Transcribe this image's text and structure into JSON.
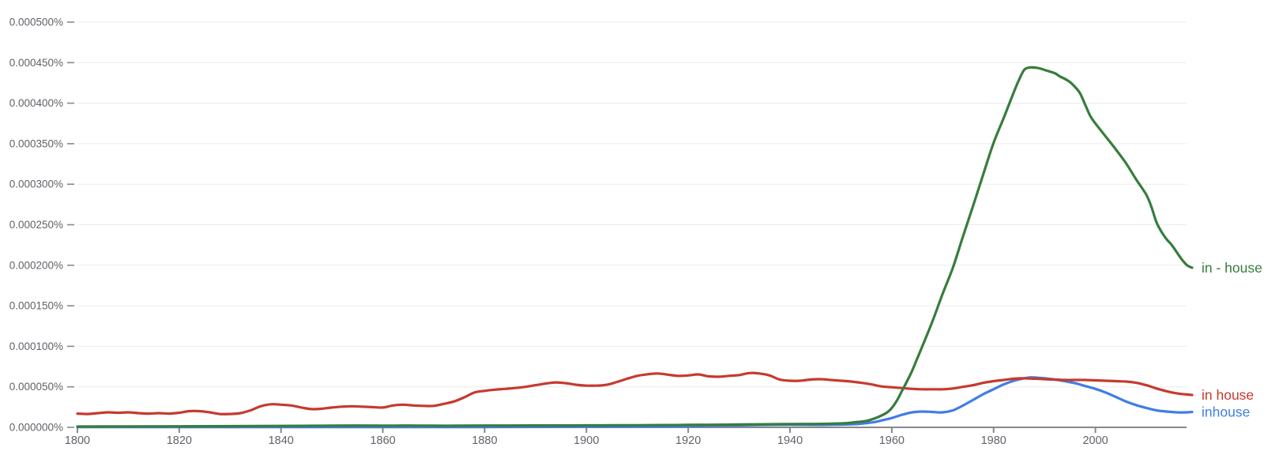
{
  "chart_data": {
    "type": "line",
    "description": "Ngram-style usage frequency chart of three phrases over time",
    "grid": true,
    "legend_position": "right-end-of-lines",
    "value_unit": "percent, stored as millionths of a percent (value 50 = 0.000050%)",
    "x_range": [
      1800,
      2019
    ],
    "y_range_percent": [
      0,
      0.0005
    ],
    "x_axis": {
      "ticks": [
        {
          "label": "1800",
          "year": 1800
        },
        {
          "label": "1820",
          "year": 1820
        },
        {
          "label": "1840",
          "year": 1840
        },
        {
          "label": "1860",
          "year": 1860
        },
        {
          "label": "1880",
          "year": 1880
        },
        {
          "label": "1900",
          "year": 1900
        },
        {
          "label": "1920",
          "year": 1920
        },
        {
          "label": "1940",
          "year": 1940
        },
        {
          "label": "1960",
          "year": 1960
        },
        {
          "label": "1980",
          "year": 1980
        },
        {
          "label": "2000",
          "year": 2000
        }
      ]
    },
    "y_axis": {
      "ticks": [
        {
          "label": "0.000500%",
          "value_e6": 500
        },
        {
          "label": "0.000450%",
          "value_e6": 450
        },
        {
          "label": "0.000400%",
          "value_e6": 400
        },
        {
          "label": "0.000350%",
          "value_e6": 350
        },
        {
          "label": "0.000300%",
          "value_e6": 300
        },
        {
          "label": "0.000250%",
          "value_e6": 250
        },
        {
          "label": "0.000200%",
          "value_e6": 200
        },
        {
          "label": "0.000150%",
          "value_e6": 150
        },
        {
          "label": "0.000100%",
          "value_e6": 100
        },
        {
          "label": "0.000050%",
          "value_e6": 50
        },
        {
          "label": "0.000000%",
          "value_e6": 0
        }
      ]
    },
    "colors": {
      "grid_line": "#ececec",
      "axis_line": "#85898d",
      "tick_mark": "#85898d",
      "axis_text": "#5f6368"
    },
    "series": [
      {
        "name": "in - house",
        "color": "#377d3c",
        "points": [
          [
            1800,
            1
          ],
          [
            1810,
            1.2
          ],
          [
            1820,
            1.3
          ],
          [
            1830,
            1.5
          ],
          [
            1840,
            1.8
          ],
          [
            1850,
            2
          ],
          [
            1855,
            2.2
          ],
          [
            1860,
            2
          ],
          [
            1865,
            2.2
          ],
          [
            1870,
            2
          ],
          [
            1875,
            2
          ],
          [
            1880,
            2.2
          ],
          [
            1885,
            2.2
          ],
          [
            1890,
            2.3
          ],
          [
            1895,
            2.3
          ],
          [
            1900,
            2.4
          ],
          [
            1905,
            2.5
          ],
          [
            1910,
            2.6
          ],
          [
            1915,
            2.8
          ],
          [
            1920,
            3
          ],
          [
            1925,
            3.2
          ],
          [
            1930,
            3.5
          ],
          [
            1935,
            3.8
          ],
          [
            1940,
            4
          ],
          [
            1944,
            4.2
          ],
          [
            1948,
            4.6
          ],
          [
            1951,
            5.2
          ],
          [
            1953,
            6.5
          ],
          [
            1955,
            8
          ],
          [
            1957,
            12
          ],
          [
            1959,
            18
          ],
          [
            1960,
            24
          ],
          [
            1961,
            33
          ],
          [
            1962,
            45
          ],
          [
            1963,
            57
          ],
          [
            1964,
            70
          ],
          [
            1965,
            85
          ],
          [
            1966,
            100
          ],
          [
            1968,
            131
          ],
          [
            1970,
            165
          ],
          [
            1972,
            197
          ],
          [
            1974,
            236
          ],
          [
            1976,
            274
          ],
          [
            1978,
            313
          ],
          [
            1980,
            351
          ],
          [
            1982,
            382
          ],
          [
            1984,
            414
          ],
          [
            1985,
            429
          ],
          [
            1986,
            441
          ],
          [
            1987,
            444
          ],
          [
            1988,
            444
          ],
          [
            1989,
            443
          ],
          [
            1990,
            441
          ],
          [
            1992,
            437
          ],
          [
            1993,
            433
          ],
          [
            1994,
            430
          ],
          [
            1995,
            426
          ],
          [
            1996,
            420
          ],
          [
            1997,
            412
          ],
          [
            1998,
            398
          ],
          [
            1999,
            384
          ],
          [
            2000,
            375
          ],
          [
            2002,
            359
          ],
          [
            2004,
            343
          ],
          [
            2006,
            326
          ],
          [
            2008,
            306
          ],
          [
            2010,
            287
          ],
          [
            2011,
            272
          ],
          [
            2012,
            253
          ],
          [
            2013,
            241
          ],
          [
            2014,
            232
          ],
          [
            2015,
            225
          ],
          [
            2016,
            216
          ],
          [
            2017,
            207
          ],
          [
            2018,
            200
          ],
          [
            2019,
            197
          ]
        ]
      },
      {
        "name": "in house",
        "color": "#c53a30",
        "points": [
          [
            1800,
            17
          ],
          [
            1802,
            16.5
          ],
          [
            1804,
            17.5
          ],
          [
            1806,
            18.5
          ],
          [
            1808,
            18
          ],
          [
            1810,
            18.5
          ],
          [
            1812,
            17.5
          ],
          [
            1814,
            17
          ],
          [
            1816,
            17.5
          ],
          [
            1818,
            17
          ],
          [
            1820,
            18
          ],
          [
            1822,
            20
          ],
          [
            1824,
            20
          ],
          [
            1826,
            18.5
          ],
          [
            1828,
            16.5
          ],
          [
            1830,
            16.5
          ],
          [
            1832,
            17.5
          ],
          [
            1834,
            21
          ],
          [
            1836,
            26
          ],
          [
            1838,
            28.5
          ],
          [
            1840,
            28
          ],
          [
            1842,
            27
          ],
          [
            1844,
            24.5
          ],
          [
            1846,
            22.5
          ],
          [
            1848,
            23
          ],
          [
            1850,
            24.5
          ],
          [
            1852,
            25.5
          ],
          [
            1854,
            26
          ],
          [
            1856,
            25.5
          ],
          [
            1858,
            25
          ],
          [
            1860,
            24.5
          ],
          [
            1862,
            27
          ],
          [
            1864,
            28
          ],
          [
            1866,
            27
          ],
          [
            1868,
            26.5
          ],
          [
            1870,
            26.5
          ],
          [
            1872,
            29
          ],
          [
            1874,
            32
          ],
          [
            1876,
            37
          ],
          [
            1878,
            43
          ],
          [
            1880,
            45
          ],
          [
            1882,
            46.5
          ],
          [
            1884,
            47.5
          ],
          [
            1886,
            48.5
          ],
          [
            1888,
            50
          ],
          [
            1890,
            52
          ],
          [
            1892,
            54
          ],
          [
            1894,
            55.5
          ],
          [
            1896,
            54.5
          ],
          [
            1898,
            52.5
          ],
          [
            1900,
            51.5
          ],
          [
            1902,
            51.5
          ],
          [
            1904,
            52.5
          ],
          [
            1906,
            56
          ],
          [
            1908,
            60
          ],
          [
            1910,
            63.5
          ],
          [
            1912,
            65.5
          ],
          [
            1914,
            66.5
          ],
          [
            1916,
            65
          ],
          [
            1918,
            63.5
          ],
          [
            1920,
            64
          ],
          [
            1922,
            65.3
          ],
          [
            1924,
            63
          ],
          [
            1926,
            62.5
          ],
          [
            1928,
            63.5
          ],
          [
            1930,
            64.5
          ],
          [
            1932,
            67
          ],
          [
            1934,
            66.5
          ],
          [
            1936,
            64
          ],
          [
            1938,
            59
          ],
          [
            1940,
            57.5
          ],
          [
            1942,
            57.5
          ],
          [
            1944,
            59
          ],
          [
            1946,
            59.5
          ],
          [
            1948,
            58.5
          ],
          [
            1950,
            57.5
          ],
          [
            1952,
            56.5
          ],
          [
            1954,
            55
          ],
          [
            1956,
            53
          ],
          [
            1958,
            50.5
          ],
          [
            1960,
            49.5
          ],
          [
            1962,
            48.5
          ],
          [
            1964,
            47.5
          ],
          [
            1966,
            47
          ],
          [
            1968,
            47
          ],
          [
            1970,
            47
          ],
          [
            1972,
            48
          ],
          [
            1974,
            50
          ],
          [
            1976,
            52
          ],
          [
            1978,
            55
          ],
          [
            1980,
            57
          ],
          [
            1982,
            58.5
          ],
          [
            1984,
            60
          ],
          [
            1986,
            60.5
          ],
          [
            1988,
            60
          ],
          [
            1990,
            59.5
          ],
          [
            1992,
            59
          ],
          [
            1994,
            58.5
          ],
          [
            1996,
            58.5
          ],
          [
            1998,
            58.5
          ],
          [
            2000,
            58
          ],
          [
            2002,
            57.5
          ],
          [
            2004,
            57
          ],
          [
            2006,
            56.5
          ],
          [
            2008,
            55
          ],
          [
            2010,
            52
          ],
          [
            2012,
            48
          ],
          [
            2014,
            44.5
          ],
          [
            2016,
            42
          ],
          [
            2018,
            40.5
          ],
          [
            2019,
            40
          ]
        ]
      },
      {
        "name": "inhouse",
        "color": "#417de3",
        "points": [
          [
            1800,
            0.3
          ],
          [
            1850,
            0.3
          ],
          [
            1880,
            0.4
          ],
          [
            1900,
            0.6
          ],
          [
            1905,
            0.7
          ],
          [
            1910,
            0.9
          ],
          [
            1915,
            1.1
          ],
          [
            1920,
            1.5
          ],
          [
            1925,
            2
          ],
          [
            1930,
            2.5
          ],
          [
            1935,
            3
          ],
          [
            1940,
            3.2
          ],
          [
            1945,
            3
          ],
          [
            1950,
            3.4
          ],
          [
            1953,
            4
          ],
          [
            1956,
            6
          ],
          [
            1958,
            8.5
          ],
          [
            1960,
            11.5
          ],
          [
            1962,
            15.5
          ],
          [
            1964,
            18.5
          ],
          [
            1966,
            19.5
          ],
          [
            1968,
            19
          ],
          [
            1970,
            18.5
          ],
          [
            1972,
            21
          ],
          [
            1974,
            27
          ],
          [
            1976,
            34
          ],
          [
            1978,
            41
          ],
          [
            1980,
            47
          ],
          [
            1982,
            53
          ],
          [
            1984,
            57.5
          ],
          [
            1986,
            60.5
          ],
          [
            1987,
            61.5
          ],
          [
            1988,
            61.5
          ],
          [
            1990,
            60.5
          ],
          [
            1992,
            59
          ],
          [
            1994,
            57
          ],
          [
            1996,
            54.5
          ],
          [
            1998,
            51
          ],
          [
            2000,
            47.5
          ],
          [
            2002,
            43
          ],
          [
            2004,
            37.5
          ],
          [
            2006,
            32
          ],
          [
            2008,
            27.5
          ],
          [
            2010,
            24
          ],
          [
            2012,
            21
          ],
          [
            2014,
            19.5
          ],
          [
            2016,
            18.5
          ],
          [
            2018,
            18.5
          ],
          [
            2019,
            19
          ]
        ]
      }
    ]
  }
}
